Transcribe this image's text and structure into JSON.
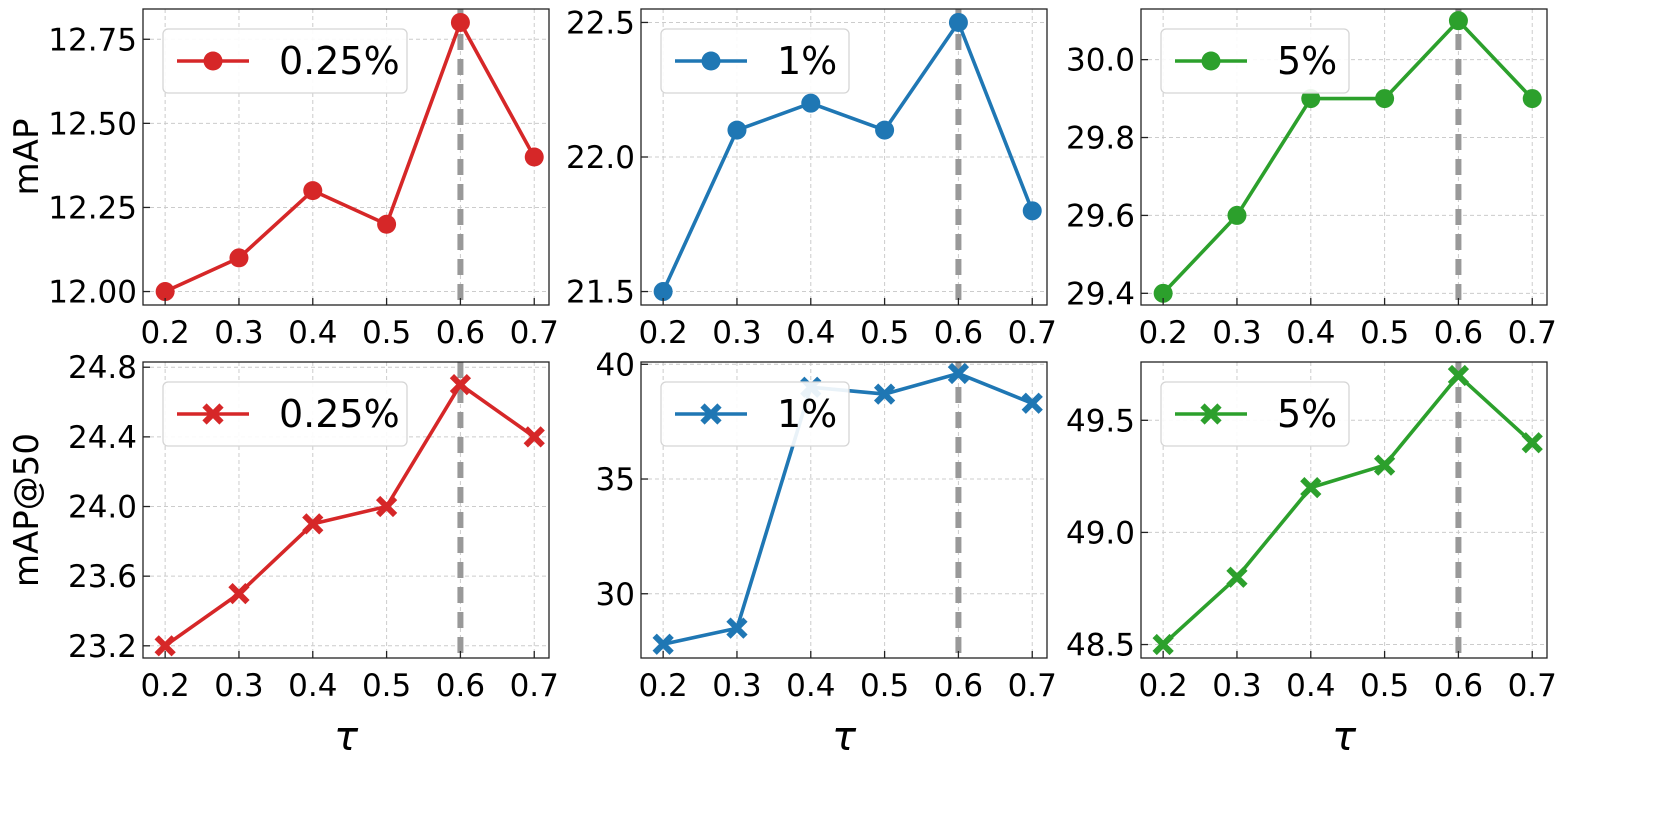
{
  "chart_data": [
    {
      "type": "line",
      "row": 0,
      "col": 0,
      "ylabel": "mAP",
      "xlabel": "",
      "x": [
        0.2,
        0.3,
        0.4,
        0.5,
        0.6,
        0.7
      ],
      "xticks": [
        "0.2",
        "0.3",
        "0.4",
        "0.5",
        "0.6",
        "0.7"
      ],
      "xlim": [
        0.17,
        0.72
      ],
      "ylim": [
        11.96,
        12.84
      ],
      "yticks": [
        "12.00",
        "12.25",
        "12.50",
        "12.75"
      ],
      "ytick_values": [
        12.0,
        12.25,
        12.5,
        12.75
      ],
      "highlight_x": 0.6,
      "series": [
        {
          "name": "0.25%",
          "values": [
            12.0,
            12.1,
            12.3,
            12.2,
            12.8,
            12.4
          ],
          "color": "#d62728",
          "marker": "circle"
        }
      ],
      "legend": "top-left",
      "grid": true
    },
    {
      "type": "line",
      "row": 0,
      "col": 1,
      "ylabel": "",
      "xlabel": "",
      "x": [
        0.2,
        0.3,
        0.4,
        0.5,
        0.6,
        0.7
      ],
      "xticks": [
        "0.2",
        "0.3",
        "0.4",
        "0.5",
        "0.6",
        "0.7"
      ],
      "xlim": [
        0.17,
        0.72
      ],
      "ylim": [
        21.45,
        22.55
      ],
      "yticks": [
        "21.5",
        "22.0",
        "22.5"
      ],
      "ytick_values": [
        21.5,
        22.0,
        22.5
      ],
      "highlight_x": 0.6,
      "series": [
        {
          "name": "1%",
          "values": [
            21.5,
            22.1,
            22.2,
            22.1,
            22.5,
            21.8
          ],
          "color": "#1f77b4",
          "marker": "circle"
        }
      ],
      "legend": "top-left",
      "grid": true
    },
    {
      "type": "line",
      "row": 0,
      "col": 2,
      "ylabel": "",
      "xlabel": "",
      "x": [
        0.2,
        0.3,
        0.4,
        0.5,
        0.6,
        0.7
      ],
      "xticks": [
        "0.2",
        "0.3",
        "0.4",
        "0.5",
        "0.6",
        "0.7"
      ],
      "xlim": [
        0.17,
        0.72
      ],
      "ylim": [
        29.37,
        30.13
      ],
      "yticks": [
        "29.4",
        "29.6",
        "29.8",
        "30.0"
      ],
      "ytick_values": [
        29.4,
        29.6,
        29.8,
        30.0
      ],
      "highlight_x": 0.6,
      "series": [
        {
          "name": "5%",
          "values": [
            29.4,
            29.6,
            29.9,
            29.9,
            30.1,
            29.9
          ],
          "color": "#2ca02c",
          "marker": "circle"
        }
      ],
      "legend": "top-left",
      "grid": true
    },
    {
      "type": "line",
      "row": 1,
      "col": 0,
      "ylabel": "mAP@50",
      "xlabel": "τ",
      "x": [
        0.2,
        0.3,
        0.4,
        0.5,
        0.6,
        0.7
      ],
      "xticks": [
        "0.2",
        "0.3",
        "0.4",
        "0.5",
        "0.6",
        "0.7"
      ],
      "xlim": [
        0.17,
        0.72
      ],
      "ylim": [
        23.13,
        24.83
      ],
      "yticks": [
        "23.2",
        "23.6",
        "24.0",
        "24.4",
        "24.8"
      ],
      "ytick_values": [
        23.2,
        23.6,
        24.0,
        24.4,
        24.8
      ],
      "highlight_x": 0.6,
      "series": [
        {
          "name": "0.25%",
          "values": [
            23.2,
            23.5,
            23.9,
            24.0,
            24.7,
            24.4
          ],
          "color": "#d62728",
          "marker": "x"
        }
      ],
      "legend": "top-left",
      "grid": true
    },
    {
      "type": "line",
      "row": 1,
      "col": 1,
      "ylabel": "",
      "xlabel": "τ",
      "x": [
        0.2,
        0.3,
        0.4,
        0.5,
        0.6,
        0.7
      ],
      "xticks": [
        "0.2",
        "0.3",
        "0.4",
        "0.5",
        "0.6",
        "0.7"
      ],
      "xlim": [
        0.17,
        0.72
      ],
      "ylim": [
        27.2,
        40.1
      ],
      "yticks": [
        "30",
        "35",
        "40"
      ],
      "ytick_values": [
        30,
        35,
        40
      ],
      "highlight_x": 0.6,
      "series": [
        {
          "name": "1%",
          "values": [
            27.8,
            28.5,
            39.0,
            38.7,
            39.6,
            38.3
          ],
          "color": "#1f77b4",
          "marker": "x"
        }
      ],
      "legend": "top-left",
      "grid": true
    },
    {
      "type": "line",
      "row": 1,
      "col": 2,
      "ylabel": "",
      "xlabel": "τ",
      "x": [
        0.2,
        0.3,
        0.4,
        0.5,
        0.6,
        0.7
      ],
      "xticks": [
        "0.2",
        "0.3",
        "0.4",
        "0.5",
        "0.6",
        "0.7"
      ],
      "xlim": [
        0.17,
        0.72
      ],
      "ylim": [
        48.44,
        49.76
      ],
      "yticks": [
        "48.5",
        "49.0",
        "49.5"
      ],
      "ytick_values": [
        48.5,
        49.0,
        49.5
      ],
      "highlight_x": 0.6,
      "series": [
        {
          "name": "5%",
          "values": [
            48.5,
            48.8,
            49.2,
            49.3,
            49.7,
            49.4
          ],
          "color": "#2ca02c",
          "marker": "x"
        }
      ],
      "legend": "top-left",
      "grid": true
    }
  ]
}
